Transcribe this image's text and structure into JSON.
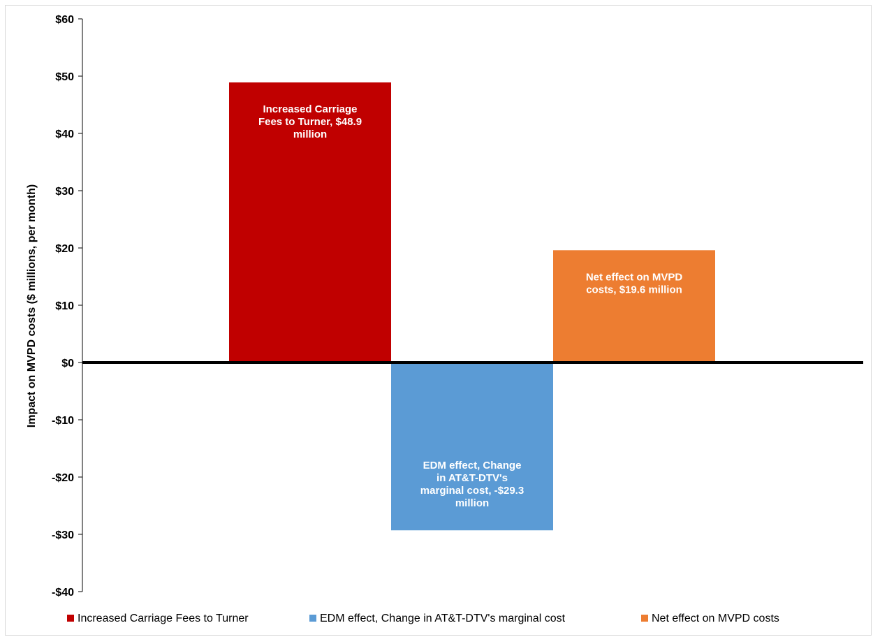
{
  "chart_data": {
    "type": "bar",
    "title": "",
    "xlabel": "",
    "ylabel": "Impact on MVPD costs ($ millions, per month)",
    "ylim": [
      -40,
      60
    ],
    "yticks": [
      60,
      50,
      40,
      30,
      20,
      10,
      0,
      -10,
      -20,
      -30,
      -40
    ],
    "ytick_labels": [
      "$60",
      "$50",
      "$40",
      "$30",
      "$20",
      "$10",
      "$0",
      "-$10",
      "-$20",
      "-$30",
      "-$40"
    ],
    "grid": false,
    "legend_position": "bottom",
    "categories": [
      "Increased Carriage Fees to Turner",
      "EDM effect, Change in AT&T-DTV's marginal cost",
      "Net effect on MVPD costs"
    ],
    "series": [
      {
        "name": "Increased Carriage Fees to Turner",
        "value": 48.9,
        "color": "#C00000",
        "label_lines": [
          "Increased Carriage",
          "Fees to Turner, $48.9",
          "million"
        ]
      },
      {
        "name": "EDM effect, Change in AT&T-DTV's marginal cost",
        "value": -29.3,
        "color": "#5B9BD5",
        "label_lines": [
          "EDM effect, Change",
          "in AT&T-DTV's",
          "marginal cost, -$29.3",
          "million"
        ]
      },
      {
        "name": "Net effect on MVPD costs",
        "value": 19.6,
        "color": "#ED7D31",
        "label_lines": [
          "Net effect on MVPD",
          "costs,  $19.6 million"
        ]
      }
    ]
  }
}
